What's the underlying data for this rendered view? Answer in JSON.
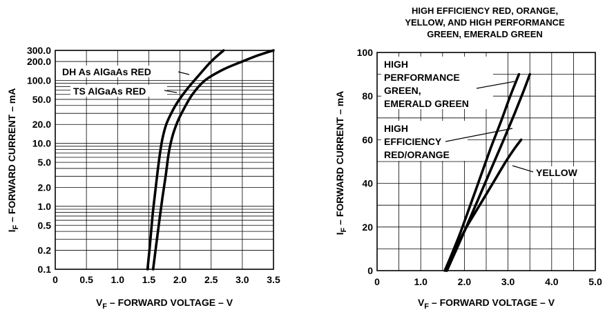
{
  "chart_data": [
    {
      "type": "line",
      "xlabel": "V",
      "xlabel_sub": "F",
      "xlabel_rest": " – FORWARD VOLTAGE – V",
      "ylabel": "I",
      "ylabel_sub": "F",
      "ylabel_rest": " – FORWARD CURRENT – mA",
      "y_scale": "log",
      "xlim": [
        0,
        3.5
      ],
      "ylim": [
        0.1,
        300
      ],
      "x_ticks": [
        "0",
        "0.5",
        "1.0",
        "1.5",
        "2.0",
        "2.5",
        "3.0",
        "3.5"
      ],
      "x_tick_values": [
        0,
        0.5,
        1.0,
        1.5,
        2.0,
        2.5,
        3.0,
        3.5
      ],
      "y_ticks": [
        "0.1",
        "0.2",
        "0.5",
        "1.0",
        "2.0",
        "5.0",
        "10.0",
        "20.0",
        "50.0",
        "100.0",
        "200.0",
        "300.0"
      ],
      "y_tick_values": [
        0.1,
        0.2,
        0.5,
        1.0,
        2.0,
        5.0,
        10.0,
        20.0,
        50.0,
        100.0,
        200.0,
        300.0
      ],
      "grid": true,
      "series": [
        {
          "name": "DH As AlGaAs RED",
          "x": [
            1.48,
            1.52,
            1.56,
            1.6,
            1.64,
            1.68,
            1.72,
            1.78,
            1.86,
            1.96,
            2.1,
            2.3,
            2.5,
            2.7
          ],
          "y": [
            0.1,
            0.25,
            0.7,
            1.6,
            3.5,
            7,
            12,
            20,
            30,
            45,
            70,
            120,
            200,
            300
          ]
        },
        {
          "name": "TS AlGaAs RED",
          "x": [
            1.57,
            1.62,
            1.67,
            1.72,
            1.77,
            1.82,
            1.88,
            1.96,
            2.06,
            2.2,
            2.4,
            2.7,
            3.0,
            3.25,
            3.5
          ],
          "y": [
            0.1,
            0.25,
            0.6,
            1.4,
            3,
            7,
            13,
            22,
            35,
            60,
            100,
            150,
            200,
            250,
            300
          ]
        }
      ]
    },
    {
      "type": "line",
      "title": [
        "HIGH EFFICIENCY RED, ORANGE,",
        "YELLOW, AND HIGH PERFORMANCE",
        "GREEN, EMERALD GREEN"
      ],
      "xlabel": "V",
      "xlabel_sub": "F",
      "xlabel_rest": " – FORWARD VOLTAGE – V",
      "ylabel": "I",
      "ylabel_sub": "F",
      "ylabel_rest": " – FORWARD CURRENT – mA",
      "xlim": [
        0,
        5.0
      ],
      "ylim": [
        0,
        100
      ],
      "x_ticks": [
        "0",
        "1.0",
        "2.0",
        "3.0",
        "4.0",
        "5.0"
      ],
      "x_tick_values": [
        0,
        1.0,
        2.0,
        3.0,
        4.0,
        5.0
      ],
      "y_ticks": [
        "0",
        "20",
        "40",
        "60",
        "80",
        "100"
      ],
      "y_tick_values": [
        0,
        20,
        40,
        60,
        80,
        100
      ],
      "grid": true,
      "series": [
        {
          "name": "HIGH PERFORMANCE GREEN, EMERALD GREEN",
          "label_lines": [
            "HIGH",
            "PERFORMANCE",
            "GREEN,",
            "EMERALD GREEN"
          ],
          "x": [
            1.55,
            1.7,
            1.9,
            2.1,
            2.35,
            2.6,
            2.85,
            3.05,
            3.25
          ],
          "y": [
            0,
            7,
            17,
            28,
            42,
            56,
            69,
            80,
            90
          ]
        },
        {
          "name": "HIGH EFFICIENCY RED/ORANGE",
          "label_lines": [
            "HIGH",
            "EFFICIENCY",
            "RED/ORANGE"
          ],
          "x": [
            1.6,
            1.8,
            2.0,
            2.3,
            2.6,
            2.9,
            3.15,
            3.35,
            3.5
          ],
          "y": [
            0,
            9,
            18,
            32,
            46,
            60,
            72,
            82,
            90
          ]
        },
        {
          "name": "YELLOW",
          "label_lines": [
            "YELLOW"
          ],
          "x": [
            1.58,
            1.8,
            2.05,
            2.35,
            2.65,
            2.95,
            3.15,
            3.3
          ],
          "y": [
            0,
            10,
            20,
            30,
            40,
            50,
            56,
            60
          ]
        }
      ]
    }
  ]
}
